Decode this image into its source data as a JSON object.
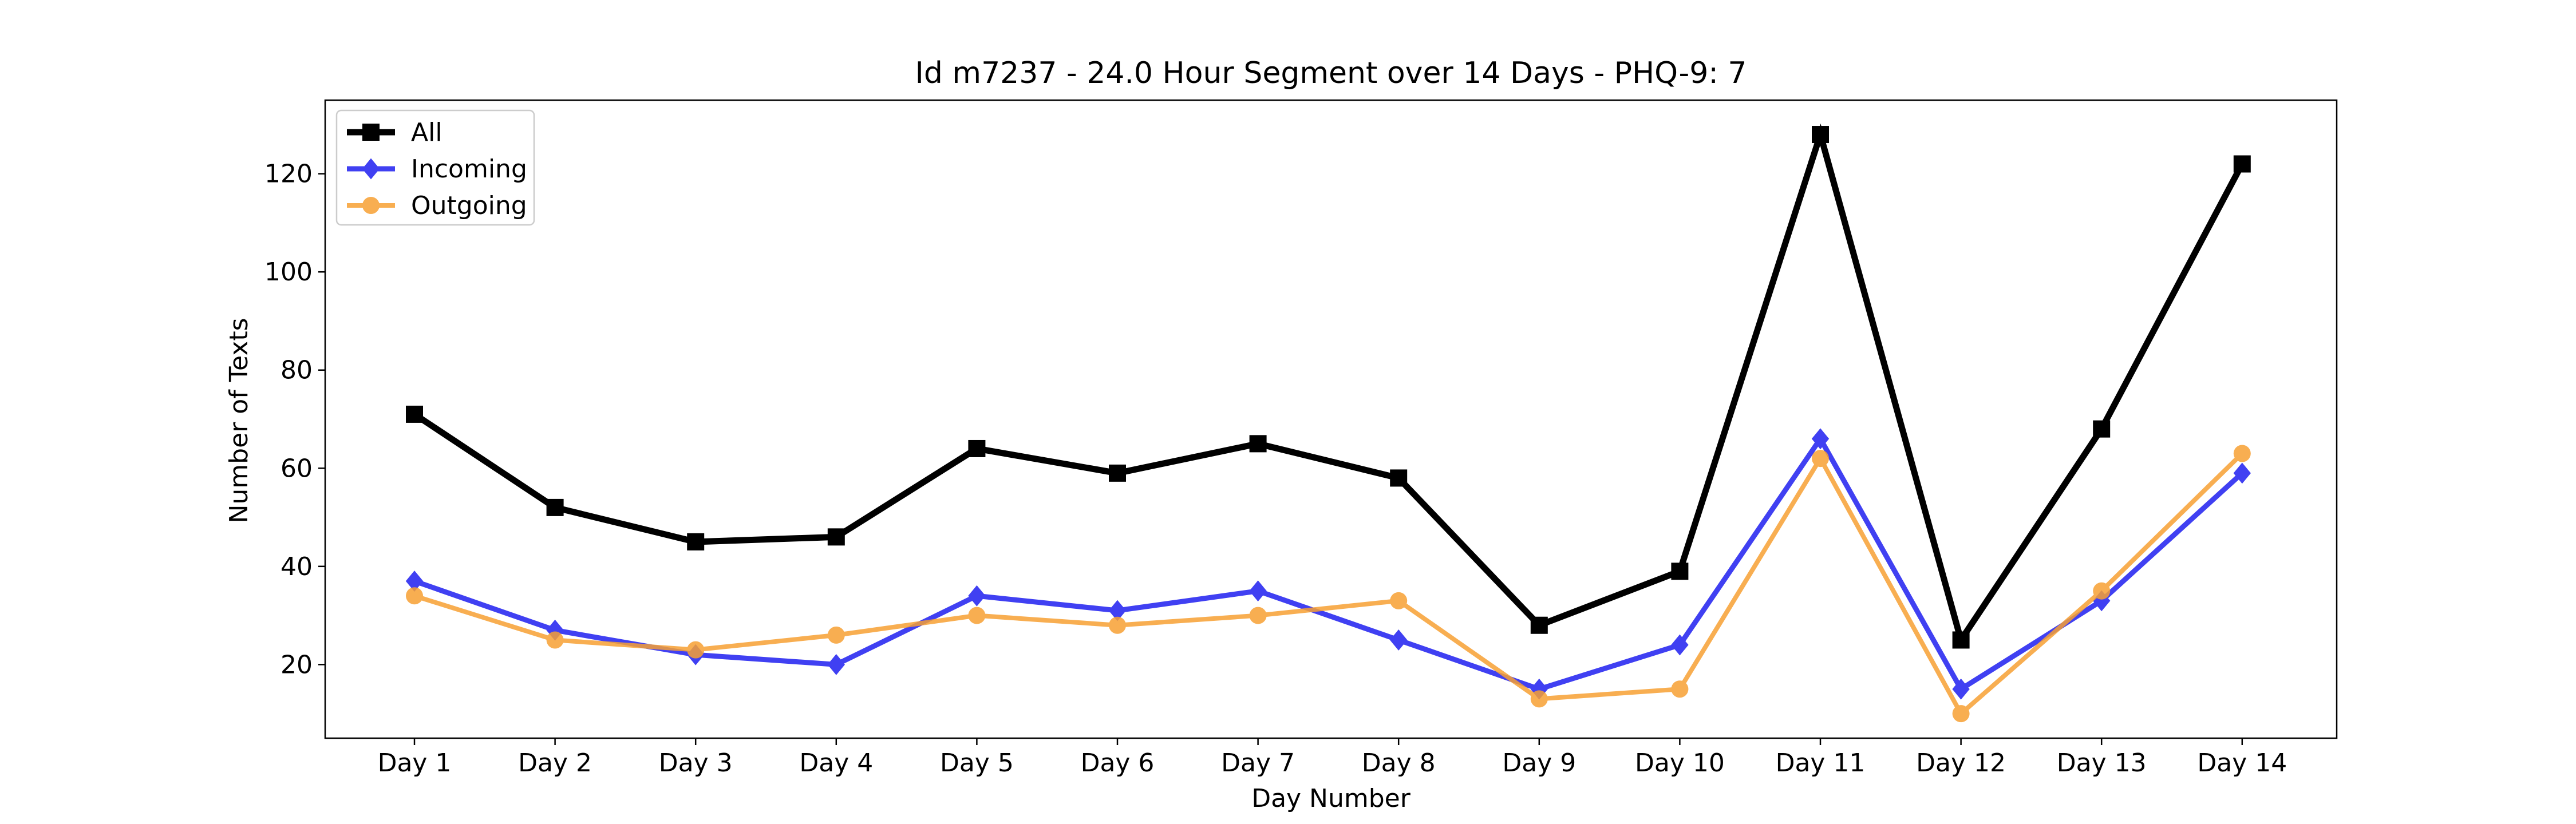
{
  "chart_data": {
    "type": "line",
    "title": "Id m7237 - 24.0 Hour Segment over 14 Days - PHQ-9: 7",
    "xlabel": "Day Number",
    "ylabel": "Number of Texts",
    "categories": [
      "Day 1",
      "Day 2",
      "Day 3",
      "Day 4",
      "Day 5",
      "Day 6",
      "Day 7",
      "Day 8",
      "Day 9",
      "Day 10",
      "Day 11",
      "Day 12",
      "Day 13",
      "Day 14"
    ],
    "yticks": [
      20,
      40,
      60,
      80,
      100,
      120
    ],
    "ylim": [
      5,
      135
    ],
    "grid": false,
    "legend_position": "top-left",
    "series": [
      {
        "name": "All",
        "color": "#000000",
        "marker": "square",
        "values": [
          71,
          52,
          45,
          46,
          64,
          59,
          65,
          58,
          28,
          39,
          128,
          25,
          68,
          122
        ]
      },
      {
        "name": "Incoming",
        "color": "#1f1ff0",
        "marker": "diamond",
        "values": [
          37,
          27,
          22,
          20,
          34,
          31,
          35,
          25,
          15,
          24,
          66,
          15,
          33,
          59
        ]
      },
      {
        "name": "Outgoing",
        "color": "#f7a033",
        "marker": "circle",
        "values": [
          34,
          25,
          23,
          26,
          30,
          28,
          30,
          33,
          13,
          15,
          62,
          10,
          35,
          63
        ]
      }
    ]
  }
}
